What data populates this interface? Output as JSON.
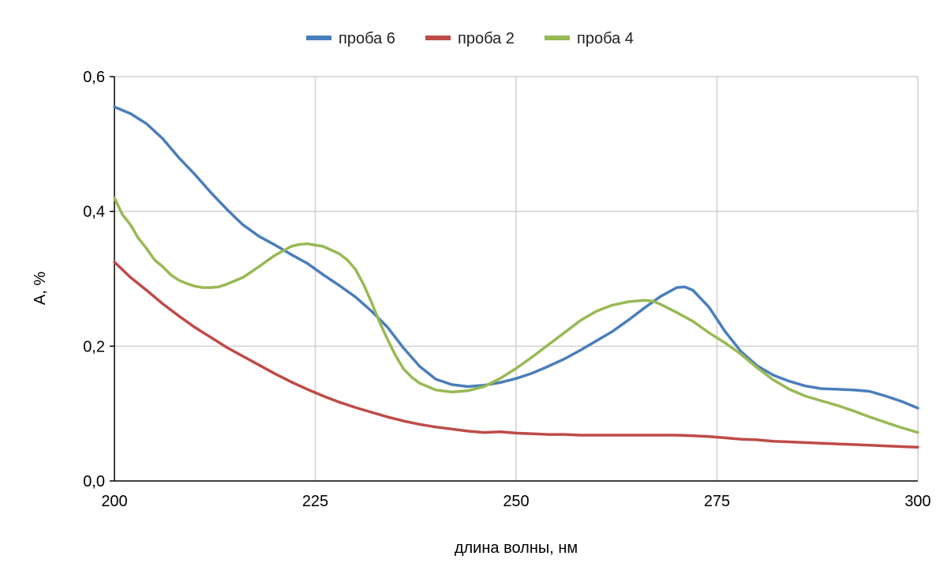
{
  "chart_data": {
    "type": "line",
    "title": "",
    "xlabel": "длина волны, нм",
    "ylabel": "A, %",
    "xlim": [
      200,
      300
    ],
    "ylim": [
      0,
      0.6
    ],
    "x_ticks": [
      200,
      225,
      250,
      275,
      300
    ],
    "x_tick_labels": [
      "200",
      "225",
      "250",
      "275",
      "300"
    ],
    "y_ticks": [
      0,
      0.2,
      0.4,
      0.6
    ],
    "y_tick_labels": [
      "0,0",
      "0,2",
      "0,4",
      "0,6"
    ],
    "grid": true,
    "legend_position": "top",
    "series": [
      {
        "name": "проба 6",
        "color": "#4a7ebb",
        "points": [
          [
            200,
            0.555
          ],
          [
            202,
            0.545
          ],
          [
            204,
            0.53
          ],
          [
            206,
            0.508
          ],
          [
            208,
            0.48
          ],
          [
            210,
            0.455
          ],
          [
            212,
            0.428
          ],
          [
            214,
            0.403
          ],
          [
            216,
            0.38
          ],
          [
            218,
            0.363
          ],
          [
            220,
            0.35
          ],
          [
            222,
            0.336
          ],
          [
            224,
            0.323
          ],
          [
            226,
            0.306
          ],
          [
            228,
            0.29
          ],
          [
            230,
            0.273
          ],
          [
            232,
            0.252
          ],
          [
            234,
            0.228
          ],
          [
            236,
            0.197
          ],
          [
            238,
            0.17
          ],
          [
            240,
            0.151
          ],
          [
            242,
            0.143
          ],
          [
            244,
            0.14
          ],
          [
            246,
            0.142
          ],
          [
            248,
            0.146
          ],
          [
            250,
            0.152
          ],
          [
            252,
            0.16
          ],
          [
            254,
            0.17
          ],
          [
            256,
            0.181
          ],
          [
            258,
            0.194
          ],
          [
            260,
            0.208
          ],
          [
            262,
            0.222
          ],
          [
            264,
            0.239
          ],
          [
            266,
            0.257
          ],
          [
            268,
            0.274
          ],
          [
            270,
            0.287
          ],
          [
            271,
            0.288
          ],
          [
            272,
            0.283
          ],
          [
            274,
            0.258
          ],
          [
            276,
            0.222
          ],
          [
            278,
            0.192
          ],
          [
            280,
            0.171
          ],
          [
            282,
            0.157
          ],
          [
            284,
            0.148
          ],
          [
            286,
            0.141
          ],
          [
            288,
            0.137
          ],
          [
            290,
            0.136
          ],
          [
            292,
            0.135
          ],
          [
            294,
            0.133
          ],
          [
            296,
            0.126
          ],
          [
            298,
            0.118
          ],
          [
            300,
            0.108
          ]
        ]
      },
      {
        "name": "проба 2",
        "color": "#be4b48",
        "points": [
          [
            200,
            0.325
          ],
          [
            202,
            0.302
          ],
          [
            204,
            0.283
          ],
          [
            206,
            0.263
          ],
          [
            208,
            0.245
          ],
          [
            210,
            0.228
          ],
          [
            212,
            0.213
          ],
          [
            214,
            0.198
          ],
          [
            216,
            0.185
          ],
          [
            218,
            0.172
          ],
          [
            220,
            0.159
          ],
          [
            222,
            0.147
          ],
          [
            224,
            0.136
          ],
          [
            226,
            0.126
          ],
          [
            228,
            0.117
          ],
          [
            230,
            0.109
          ],
          [
            232,
            0.102
          ],
          [
            234,
            0.095
          ],
          [
            236,
            0.089
          ],
          [
            238,
            0.084
          ],
          [
            240,
            0.08
          ],
          [
            242,
            0.077
          ],
          [
            244,
            0.074
          ],
          [
            246,
            0.072
          ],
          [
            248,
            0.073
          ],
          [
            250,
            0.071
          ],
          [
            252,
            0.07
          ],
          [
            254,
            0.069
          ],
          [
            256,
            0.069
          ],
          [
            258,
            0.068
          ],
          [
            260,
            0.068
          ],
          [
            262,
            0.068
          ],
          [
            264,
            0.068
          ],
          [
            266,
            0.068
          ],
          [
            268,
            0.068
          ],
          [
            270,
            0.068
          ],
          [
            272,
            0.067
          ],
          [
            274,
            0.066
          ],
          [
            276,
            0.064
          ],
          [
            278,
            0.062
          ],
          [
            280,
            0.061
          ],
          [
            282,
            0.059
          ],
          [
            284,
            0.058
          ],
          [
            286,
            0.057
          ],
          [
            288,
            0.056
          ],
          [
            290,
            0.055
          ],
          [
            292,
            0.054
          ],
          [
            294,
            0.053
          ],
          [
            296,
            0.052
          ],
          [
            298,
            0.051
          ],
          [
            300,
            0.05
          ]
        ]
      },
      {
        "name": "проба 4",
        "color": "#98b954",
        "points": [
          [
            200,
            0.42
          ],
          [
            201,
            0.395
          ],
          [
            202,
            0.38
          ],
          [
            203,
            0.36
          ],
          [
            204,
            0.345
          ],
          [
            205,
            0.328
          ],
          [
            206,
            0.318
          ],
          [
            207,
            0.306
          ],
          [
            208,
            0.298
          ],
          [
            209,
            0.293
          ],
          [
            210,
            0.289
          ],
          [
            211,
            0.287
          ],
          [
            212,
            0.287
          ],
          [
            213,
            0.288
          ],
          [
            214,
            0.292
          ],
          [
            216,
            0.302
          ],
          [
            218,
            0.318
          ],
          [
            220,
            0.335
          ],
          [
            222,
            0.348
          ],
          [
            223,
            0.351
          ],
          [
            224,
            0.352
          ],
          [
            226,
            0.348
          ],
          [
            228,
            0.337
          ],
          [
            229,
            0.328
          ],
          [
            230,
            0.314
          ],
          [
            231,
            0.292
          ],
          [
            232,
            0.265
          ],
          [
            233,
            0.236
          ],
          [
            234,
            0.21
          ],
          [
            235,
            0.186
          ],
          [
            236,
            0.166
          ],
          [
            237,
            0.154
          ],
          [
            238,
            0.145
          ],
          [
            240,
            0.135
          ],
          [
            242,
            0.132
          ],
          [
            244,
            0.134
          ],
          [
            246,
            0.14
          ],
          [
            248,
            0.152
          ],
          [
            250,
            0.167
          ],
          [
            252,
            0.184
          ],
          [
            254,
            0.202
          ],
          [
            256,
            0.22
          ],
          [
            258,
            0.238
          ],
          [
            260,
            0.252
          ],
          [
            262,
            0.261
          ],
          [
            264,
            0.266
          ],
          [
            266,
            0.268
          ],
          [
            267,
            0.267
          ],
          [
            268,
            0.262
          ],
          [
            270,
            0.25
          ],
          [
            272,
            0.237
          ],
          [
            274,
            0.22
          ],
          [
            276,
            0.205
          ],
          [
            278,
            0.188
          ],
          [
            280,
            0.168
          ],
          [
            282,
            0.15
          ],
          [
            284,
            0.136
          ],
          [
            286,
            0.126
          ],
          [
            288,
            0.119
          ],
          [
            290,
            0.112
          ],
          [
            292,
            0.104
          ],
          [
            294,
            0.095
          ],
          [
            296,
            0.087
          ],
          [
            298,
            0.079
          ],
          [
            300,
            0.072
          ]
        ]
      }
    ]
  }
}
